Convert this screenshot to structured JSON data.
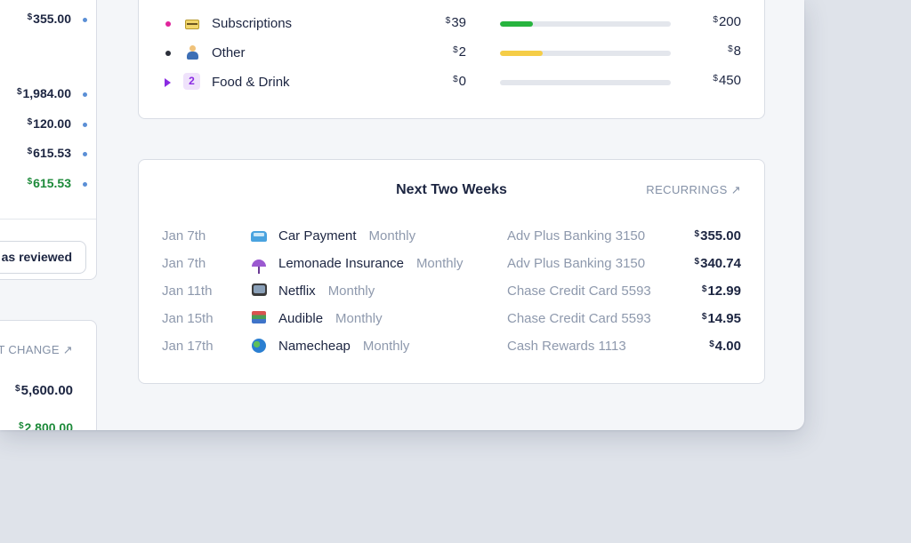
{
  "left_panel": {
    "amounts": [
      {
        "value": "355.00",
        "symbol": "$",
        "color": "#1c2541"
      },
      {
        "value": "1,984.00",
        "symbol": "$",
        "color": "#1c2541"
      },
      {
        "value": "120.00",
        "symbol": "$",
        "color": "#1c2541"
      },
      {
        "value": "615.53",
        "symbol": "$",
        "color": "#1c2541"
      },
      {
        "value": "615.53",
        "symbol": "$",
        "color": "#1d8a3a"
      }
    ],
    "reviewed_button": "as reviewed",
    "change_link": "T CHANGE",
    "bottom_amounts": [
      {
        "value": "5,600.00",
        "symbol": "$"
      },
      {
        "value": "2,800.00",
        "symbol": "$"
      }
    ]
  },
  "budget": {
    "rows": [
      {
        "label": "Subscriptions",
        "spent": "39",
        "total": "200",
        "dot_color": "#e0249b",
        "icon": "credit-card-icon",
        "progress": 0.195,
        "bar_color": "#27b43e"
      },
      {
        "label": "Other",
        "spent": "2",
        "total": "8",
        "dot_color": "#2b2f3a",
        "icon": "person-icon",
        "progress": 0.25,
        "bar_color": "#f5cd47"
      },
      {
        "label": "Food & Drink",
        "spent": "0",
        "total": "450",
        "dot_color": "#8a2be2",
        "icon": "expand-triangle-icon",
        "count": "2",
        "progress": 0,
        "bar_color": "#e3e6ec"
      }
    ]
  },
  "weeks": {
    "title": "Next Two Weeks",
    "link_label": "RECURRINGS",
    "transactions": [
      {
        "date": "Jan 7th",
        "icon": "car-icon",
        "name": "Car Payment",
        "frequency": "Monthly",
        "account": "Adv Plus Banking 3150",
        "amount": "355.00"
      },
      {
        "date": "Jan 7th",
        "icon": "umbrella-icon",
        "name": "Lemonade Insurance",
        "frequency": "Monthly",
        "account": "Adv Plus Banking 3150",
        "amount": "340.74"
      },
      {
        "date": "Jan 11th",
        "icon": "tv-icon",
        "name": "Netflix",
        "frequency": "Monthly",
        "account": "Chase Credit Card 5593",
        "amount": "12.99"
      },
      {
        "date": "Jan 15th",
        "icon": "books-icon",
        "name": "Audible",
        "frequency": "Monthly",
        "account": "Chase Credit Card 5593",
        "amount": "14.95"
      },
      {
        "date": "Jan 17th",
        "icon": "globe-icon",
        "name": "Namecheap",
        "frequency": "Monthly",
        "account": "Cash Rewards 1113",
        "amount": "4.00"
      }
    ],
    "currency_symbol": "$"
  }
}
